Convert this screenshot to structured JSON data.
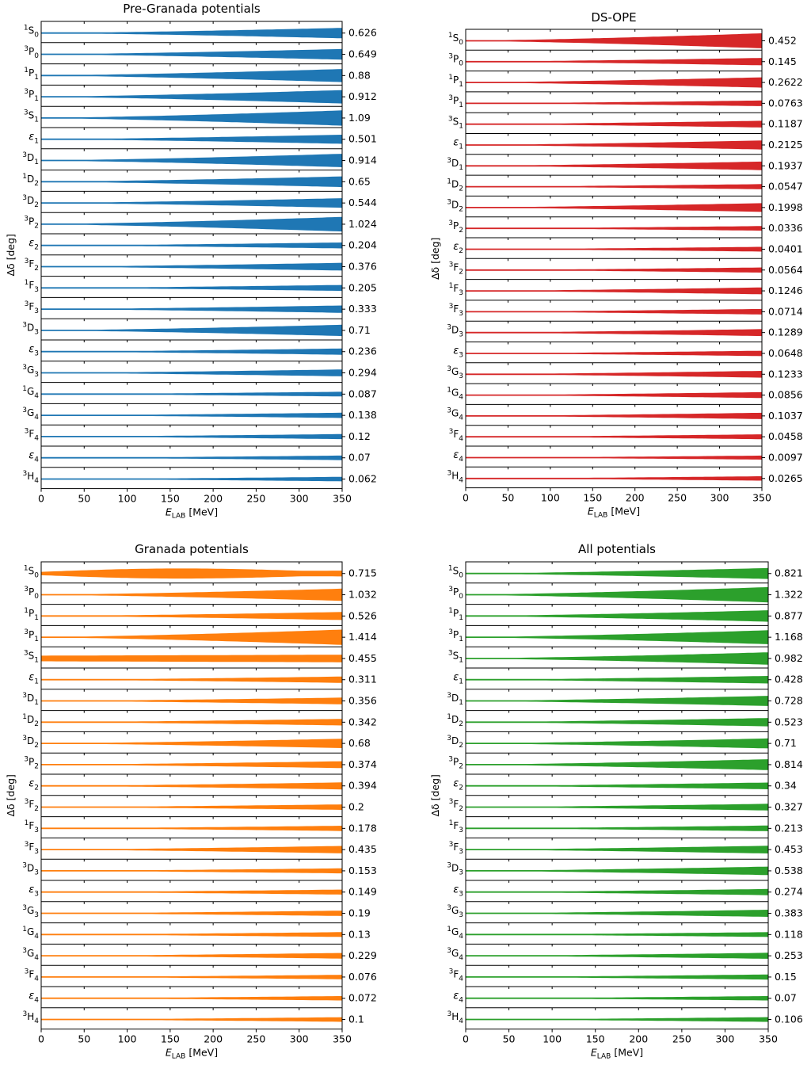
{
  "chart_data": [
    {
      "type": "area",
      "title": "Pre-Granada potentials",
      "color": "#1f77b4",
      "xlabel_main": "E",
      "xlabel_sub": "LAB",
      "xlabel_unit": " [MeV]",
      "ylabel": "Δδ [deg]",
      "xlim": [
        0,
        350
      ],
      "xticks": [
        "0",
        "50",
        "100",
        "150",
        "200",
        "250",
        "300",
        "350"
      ],
      "channels": [
        {
          "pre": "1",
          "main": "S",
          "sub": "0",
          "max": "0.626"
        },
        {
          "pre": "3",
          "main": "P",
          "sub": "0",
          "max": "0.649"
        },
        {
          "pre": "1",
          "main": "P",
          "sub": "1",
          "max": "0.88"
        },
        {
          "pre": "3",
          "main": "P",
          "sub": "1",
          "max": "0.912"
        },
        {
          "pre": "3",
          "main": "S",
          "sub": "1",
          "max": "1.09"
        },
        {
          "pre": "",
          "main": "ε",
          "sub": "1",
          "max": "0.501"
        },
        {
          "pre": "3",
          "main": "D",
          "sub": "1",
          "max": "0.914"
        },
        {
          "pre": "1",
          "main": "D",
          "sub": "2",
          "max": "0.65"
        },
        {
          "pre": "3",
          "main": "D",
          "sub": "2",
          "max": "0.544"
        },
        {
          "pre": "3",
          "main": "P",
          "sub": "2",
          "max": "1.024"
        },
        {
          "pre": "",
          "main": "ε",
          "sub": "2",
          "max": "0.204"
        },
        {
          "pre": "3",
          "main": "F",
          "sub": "2",
          "max": "0.376"
        },
        {
          "pre": "1",
          "main": "F",
          "sub": "3",
          "max": "0.205"
        },
        {
          "pre": "3",
          "main": "F",
          "sub": "3",
          "max": "0.333"
        },
        {
          "pre": "3",
          "main": "D",
          "sub": "3",
          "max": "0.71"
        },
        {
          "pre": "",
          "main": "ε",
          "sub": "3",
          "max": "0.236"
        },
        {
          "pre": "3",
          "main": "G",
          "sub": "3",
          "max": "0.294"
        },
        {
          "pre": "1",
          "main": "G",
          "sub": "4",
          "max": "0.087"
        },
        {
          "pre": "3",
          "main": "G",
          "sub": "4",
          "max": "0.138"
        },
        {
          "pre": "3",
          "main": "F",
          "sub": "4",
          "max": "0.12"
        },
        {
          "pre": "",
          "main": "ε",
          "sub": "4",
          "max": "0.07"
        },
        {
          "pre": "3",
          "main": "H",
          "sub": "4",
          "max": "0.062"
        }
      ]
    },
    {
      "type": "area",
      "title": "DS-OPE",
      "color": "#d62728",
      "xlabel_main": "E",
      "xlabel_sub": "LAB",
      "xlabel_unit": " [MeV]",
      "ylabel": "Δδ [deg]",
      "xlim": [
        0,
        350
      ],
      "xticks": [
        "0",
        "50",
        "100",
        "150",
        "200",
        "250",
        "300",
        "350"
      ],
      "channels": [
        {
          "pre": "1",
          "main": "S",
          "sub": "0",
          "max": "0.452"
        },
        {
          "pre": "3",
          "main": "P",
          "sub": "0",
          "max": "0.145"
        },
        {
          "pre": "1",
          "main": "P",
          "sub": "1",
          "max": "0.2622"
        },
        {
          "pre": "3",
          "main": "P",
          "sub": "1",
          "max": "0.0763"
        },
        {
          "pre": "3",
          "main": "S",
          "sub": "1",
          "max": "0.1187"
        },
        {
          "pre": "",
          "main": "ε",
          "sub": "1",
          "max": "0.2125"
        },
        {
          "pre": "3",
          "main": "D",
          "sub": "1",
          "max": "0.1937"
        },
        {
          "pre": "1",
          "main": "D",
          "sub": "2",
          "max": "0.0547"
        },
        {
          "pre": "3",
          "main": "D",
          "sub": "2",
          "max": "0.1998"
        },
        {
          "pre": "3",
          "main": "P",
          "sub": "2",
          "max": "0.0336"
        },
        {
          "pre": "",
          "main": "ε",
          "sub": "2",
          "max": "0.0401"
        },
        {
          "pre": "3",
          "main": "F",
          "sub": "2",
          "max": "0.0564"
        },
        {
          "pre": "1",
          "main": "F",
          "sub": "3",
          "max": "0.1246"
        },
        {
          "pre": "3",
          "main": "F",
          "sub": "3",
          "max": "0.0714"
        },
        {
          "pre": "3",
          "main": "D",
          "sub": "3",
          "max": "0.1289"
        },
        {
          "pre": "",
          "main": "ε",
          "sub": "3",
          "max": "0.0648"
        },
        {
          "pre": "3",
          "main": "G",
          "sub": "3",
          "max": "0.1233"
        },
        {
          "pre": "1",
          "main": "G",
          "sub": "4",
          "max": "0.0856"
        },
        {
          "pre": "3",
          "main": "G",
          "sub": "4",
          "max": "0.1037"
        },
        {
          "pre": "3",
          "main": "F",
          "sub": "4",
          "max": "0.0458"
        },
        {
          "pre": "",
          "main": "ε",
          "sub": "4",
          "max": "0.0097"
        },
        {
          "pre": "3",
          "main": "H",
          "sub": "4",
          "max": "0.0265"
        }
      ]
    },
    {
      "type": "area",
      "title": "Granada potentials",
      "color": "#ff7f0e",
      "xlabel_main": "E",
      "xlabel_sub": "LAB",
      "xlabel_unit": " [MeV]",
      "ylabel": "Δδ [deg]",
      "xlim": [
        0,
        350
      ],
      "xticks": [
        "0",
        "50",
        "100",
        "150",
        "200",
        "250",
        "300",
        "350"
      ],
      "channels": [
        {
          "pre": "1",
          "main": "S",
          "sub": "0",
          "max": "0.715"
        },
        {
          "pre": "3",
          "main": "P",
          "sub": "0",
          "max": "1.032"
        },
        {
          "pre": "1",
          "main": "P",
          "sub": "1",
          "max": "0.526"
        },
        {
          "pre": "3",
          "main": "P",
          "sub": "1",
          "max": "1.414"
        },
        {
          "pre": "3",
          "main": "S",
          "sub": "1",
          "max": "0.455"
        },
        {
          "pre": "",
          "main": "ε",
          "sub": "1",
          "max": "0.311"
        },
        {
          "pre": "3",
          "main": "D",
          "sub": "1",
          "max": "0.356"
        },
        {
          "pre": "1",
          "main": "D",
          "sub": "2",
          "max": "0.342"
        },
        {
          "pre": "3",
          "main": "D",
          "sub": "2",
          "max": "0.68"
        },
        {
          "pre": "3",
          "main": "P",
          "sub": "2",
          "max": "0.374"
        },
        {
          "pre": "",
          "main": "ε",
          "sub": "2",
          "max": "0.394"
        },
        {
          "pre": "3",
          "main": "F",
          "sub": "2",
          "max": "0.2"
        },
        {
          "pre": "1",
          "main": "F",
          "sub": "3",
          "max": "0.178"
        },
        {
          "pre": "3",
          "main": "F",
          "sub": "3",
          "max": "0.435"
        },
        {
          "pre": "3",
          "main": "D",
          "sub": "3",
          "max": "0.153"
        },
        {
          "pre": "",
          "main": "ε",
          "sub": "3",
          "max": "0.149"
        },
        {
          "pre": "3",
          "main": "G",
          "sub": "3",
          "max": "0.19"
        },
        {
          "pre": "1",
          "main": "G",
          "sub": "4",
          "max": "0.13"
        },
        {
          "pre": "3",
          "main": "G",
          "sub": "4",
          "max": "0.229"
        },
        {
          "pre": "3",
          "main": "F",
          "sub": "4",
          "max": "0.076"
        },
        {
          "pre": "",
          "main": "ε",
          "sub": "4",
          "max": "0.072"
        },
        {
          "pre": "3",
          "main": "H",
          "sub": "4",
          "max": "0.1"
        }
      ]
    },
    {
      "type": "area",
      "title": "All potentials",
      "color": "#2ca02c",
      "xlabel_main": "E",
      "xlabel_sub": "LAB",
      "xlabel_unit": " [MeV]",
      "ylabel": "Δδ [deg]",
      "xlim": [
        0,
        350
      ],
      "xticks": [
        "0",
        "50",
        "100",
        "150",
        "200",
        "250",
        "300",
        "350"
      ],
      "channels": [
        {
          "pre": "1",
          "main": "S",
          "sub": "0",
          "max": "0.821"
        },
        {
          "pre": "3",
          "main": "P",
          "sub": "0",
          "max": "1.322"
        },
        {
          "pre": "1",
          "main": "P",
          "sub": "1",
          "max": "0.877"
        },
        {
          "pre": "3",
          "main": "P",
          "sub": "1",
          "max": "1.168"
        },
        {
          "pre": "3",
          "main": "S",
          "sub": "1",
          "max": "0.982"
        },
        {
          "pre": "",
          "main": "ε",
          "sub": "1",
          "max": "0.428"
        },
        {
          "pre": "3",
          "main": "D",
          "sub": "1",
          "max": "0.728"
        },
        {
          "pre": "1",
          "main": "D",
          "sub": "2",
          "max": "0.523"
        },
        {
          "pre": "3",
          "main": "D",
          "sub": "2",
          "max": "0.71"
        },
        {
          "pre": "3",
          "main": "P",
          "sub": "2",
          "max": "0.814"
        },
        {
          "pre": "",
          "main": "ε",
          "sub": "2",
          "max": "0.34"
        },
        {
          "pre": "3",
          "main": "F",
          "sub": "2",
          "max": "0.327"
        },
        {
          "pre": "1",
          "main": "F",
          "sub": "3",
          "max": "0.213"
        },
        {
          "pre": "3",
          "main": "F",
          "sub": "3",
          "max": "0.453"
        },
        {
          "pre": "3",
          "main": "D",
          "sub": "3",
          "max": "0.538"
        },
        {
          "pre": "",
          "main": "ε",
          "sub": "3",
          "max": "0.274"
        },
        {
          "pre": "3",
          "main": "G",
          "sub": "3",
          "max": "0.383"
        },
        {
          "pre": "1",
          "main": "G",
          "sub": "4",
          "max": "0.118"
        },
        {
          "pre": "3",
          "main": "G",
          "sub": "4",
          "max": "0.253"
        },
        {
          "pre": "3",
          "main": "F",
          "sub": "4",
          "max": "0.15"
        },
        {
          "pre": "",
          "main": "ε",
          "sub": "4",
          "max": "0.07"
        },
        {
          "pre": "3",
          "main": "H",
          "sub": "4",
          "max": "0.106"
        }
      ]
    }
  ]
}
